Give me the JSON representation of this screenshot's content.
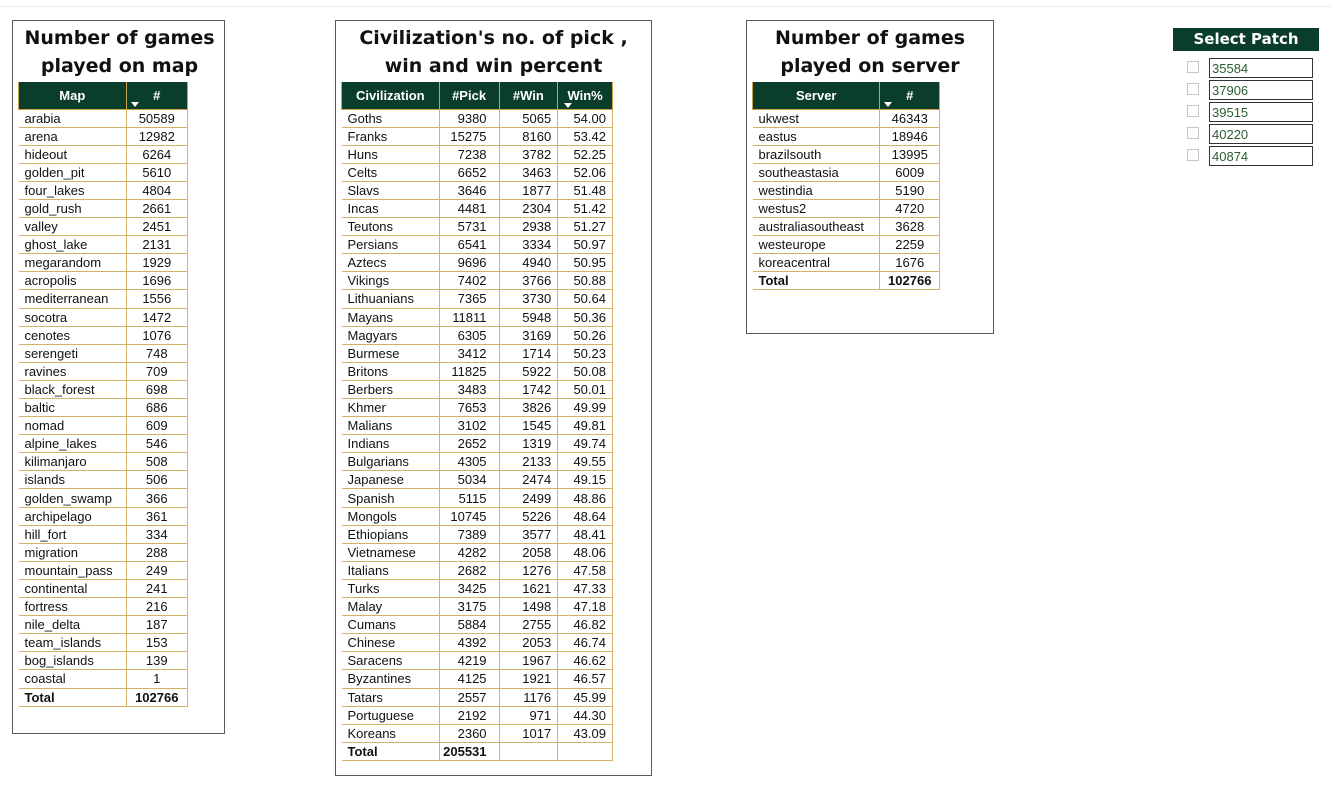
{
  "map_panel": {
    "title": "Number of games played on map",
    "headers": [
      "Map",
      "#"
    ],
    "rows": [
      [
        "arabia",
        "50589"
      ],
      [
        "arena",
        "12982"
      ],
      [
        "hideout",
        "6264"
      ],
      [
        "golden_pit",
        "5610"
      ],
      [
        "four_lakes",
        "4804"
      ],
      [
        "gold_rush",
        "2661"
      ],
      [
        "valley",
        "2451"
      ],
      [
        "ghost_lake",
        "2131"
      ],
      [
        "megarandom",
        "1929"
      ],
      [
        "acropolis",
        "1696"
      ],
      [
        "mediterranean",
        "1556"
      ],
      [
        "socotra",
        "1472"
      ],
      [
        "cenotes",
        "1076"
      ],
      [
        "serengeti",
        "748"
      ],
      [
        "ravines",
        "709"
      ],
      [
        "black_forest",
        "698"
      ],
      [
        "baltic",
        "686"
      ],
      [
        "nomad",
        "609"
      ],
      [
        "alpine_lakes",
        "546"
      ],
      [
        "kilimanjaro",
        "508"
      ],
      [
        "islands",
        "506"
      ],
      [
        "golden_swamp",
        "366"
      ],
      [
        "archipelago",
        "361"
      ],
      [
        "hill_fort",
        "334"
      ],
      [
        "migration",
        "288"
      ],
      [
        "mountain_pass",
        "249"
      ],
      [
        "continental",
        "241"
      ],
      [
        "fortress",
        "216"
      ],
      [
        "nile_delta",
        "187"
      ],
      [
        "team_islands",
        "153"
      ],
      [
        "bog_islands",
        "139"
      ],
      [
        "coastal",
        "1"
      ]
    ],
    "total": [
      "Total",
      "102766"
    ]
  },
  "civ_panel": {
    "title": "Civilization's no. of pick , win and win percent",
    "headers": [
      "Civilization",
      "#Pick",
      "#Win",
      "Win%"
    ],
    "rows": [
      [
        "Goths",
        "9380",
        "5065",
        "54.00"
      ],
      [
        "Franks",
        "15275",
        "8160",
        "53.42"
      ],
      [
        "Huns",
        "7238",
        "3782",
        "52.25"
      ],
      [
        "Celts",
        "6652",
        "3463",
        "52.06"
      ],
      [
        "Slavs",
        "3646",
        "1877",
        "51.48"
      ],
      [
        "Incas",
        "4481",
        "2304",
        "51.42"
      ],
      [
        "Teutons",
        "5731",
        "2938",
        "51.27"
      ],
      [
        "Persians",
        "6541",
        "3334",
        "50.97"
      ],
      [
        "Aztecs",
        "9696",
        "4940",
        "50.95"
      ],
      [
        "Vikings",
        "7402",
        "3766",
        "50.88"
      ],
      [
        "Lithuanians",
        "7365",
        "3730",
        "50.64"
      ],
      [
        "Mayans",
        "11811",
        "5948",
        "50.36"
      ],
      [
        "Magyars",
        "6305",
        "3169",
        "50.26"
      ],
      [
        "Burmese",
        "3412",
        "1714",
        "50.23"
      ],
      [
        "Britons",
        "11825",
        "5922",
        "50.08"
      ],
      [
        "Berbers",
        "3483",
        "1742",
        "50.01"
      ],
      [
        "Khmer",
        "7653",
        "3826",
        "49.99"
      ],
      [
        "Malians",
        "3102",
        "1545",
        "49.81"
      ],
      [
        "Indians",
        "2652",
        "1319",
        "49.74"
      ],
      [
        "Bulgarians",
        "4305",
        "2133",
        "49.55"
      ],
      [
        "Japanese",
        "5034",
        "2474",
        "49.15"
      ],
      [
        "Spanish",
        "5115",
        "2499",
        "48.86"
      ],
      [
        "Mongols",
        "10745",
        "5226",
        "48.64"
      ],
      [
        "Ethiopians",
        "7389",
        "3577",
        "48.41"
      ],
      [
        "Vietnamese",
        "4282",
        "2058",
        "48.06"
      ],
      [
        "Italians",
        "2682",
        "1276",
        "47.58"
      ],
      [
        "Turks",
        "3425",
        "1621",
        "47.33"
      ],
      [
        "Malay",
        "3175",
        "1498",
        "47.18"
      ],
      [
        "Cumans",
        "5884",
        "2755",
        "46.82"
      ],
      [
        "Chinese",
        "4392",
        "2053",
        "46.74"
      ],
      [
        "Saracens",
        "4219",
        "1967",
        "46.62"
      ],
      [
        "Byzantines",
        "4125",
        "1921",
        "46.57"
      ],
      [
        "Tatars",
        "2557",
        "1176",
        "45.99"
      ],
      [
        "Portuguese",
        "2192",
        "971",
        "44.30"
      ],
      [
        "Koreans",
        "2360",
        "1017",
        "43.09"
      ]
    ],
    "total": [
      "Total",
      "205531",
      "",
      ""
    ]
  },
  "server_panel": {
    "title": "Number of games played on server",
    "headers": [
      "Server",
      "#"
    ],
    "rows": [
      [
        "ukwest",
        "46343"
      ],
      [
        "eastus",
        "18946"
      ],
      [
        "brazilsouth",
        "13995"
      ],
      [
        "southeastasia",
        "6009"
      ],
      [
        "westindia",
        "5190"
      ],
      [
        "westus2",
        "4720"
      ],
      [
        "australiasoutheast",
        "3628"
      ],
      [
        "westeurope",
        "2259"
      ],
      [
        "koreacentral",
        "1676"
      ]
    ],
    "total": [
      "Total",
      "102766"
    ]
  },
  "patch_slicer": {
    "title": "Select Patch",
    "options": [
      "35584",
      "37906",
      "39515",
      "40220",
      "40874"
    ]
  }
}
